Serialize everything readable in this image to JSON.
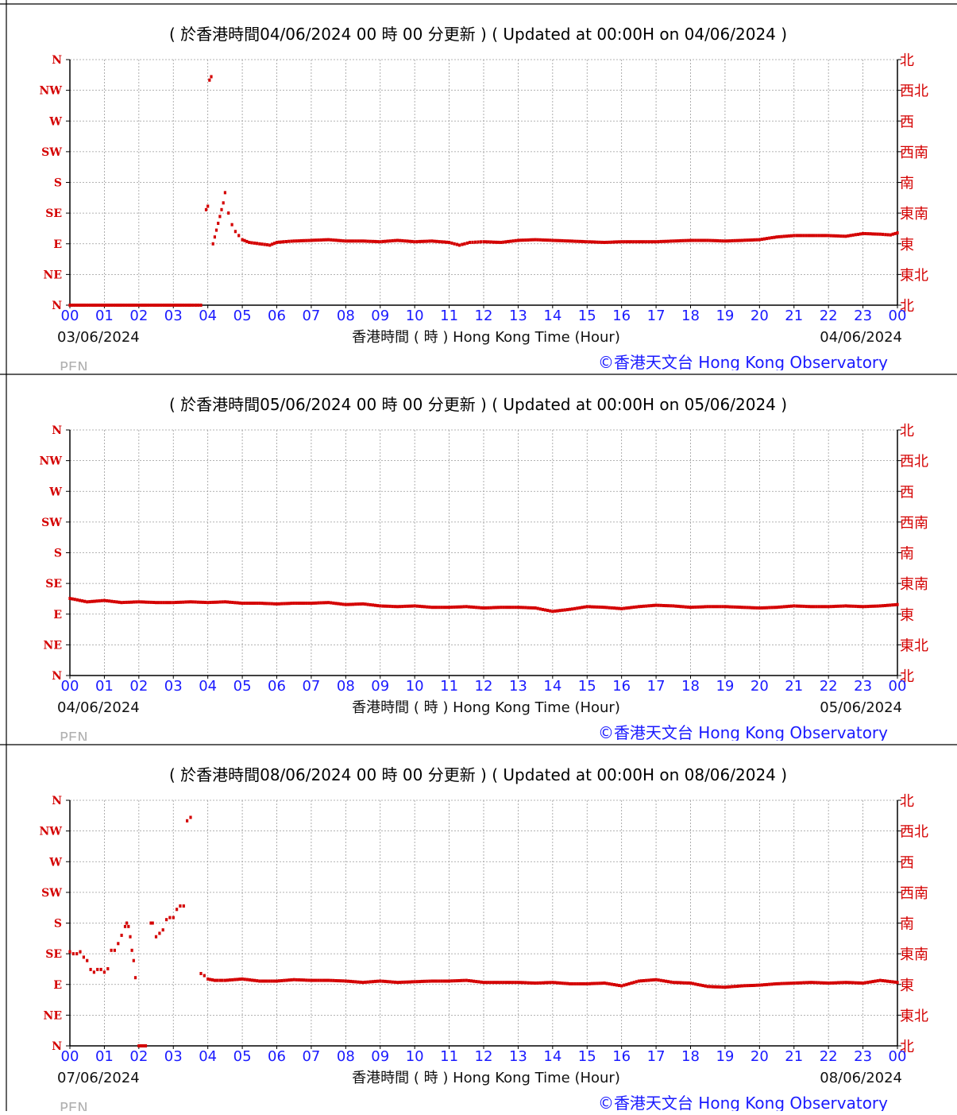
{
  "colors": {
    "series": "#d40000",
    "ticks_x": "#1a1aff",
    "ticks_y": "#d40000",
    "grid": "#9a9a9a",
    "station": "#b0b0b0",
    "credit": "#1a1aff"
  },
  "chart_data": [
    {
      "type": "scatter",
      "title": "( 於香港時間04/06/2024 00 時 00 分更新 ) ( Updated at 00:00H on 04/06/2024 )",
      "xlabel": "香港時間 ( 時 ) Hong Kong Time (Hour)",
      "start_date": "03/06/2024",
      "end_date": "04/06/2024",
      "station": "PEN",
      "credit": "©香港天文台 Hong Kong Observatory",
      "xlim": [
        0,
        24
      ],
      "ylim": [
        0,
        360
      ],
      "x_ticks": [
        "00",
        "01",
        "02",
        "03",
        "04",
        "05",
        "06",
        "07",
        "08",
        "09",
        "10",
        "11",
        "12",
        "13",
        "14",
        "15",
        "16",
        "17",
        "18",
        "19",
        "20",
        "21",
        "22",
        "23",
        "00"
      ],
      "y_ticks_left": [
        "N",
        "NE",
        "E",
        "SE",
        "S",
        "SW",
        "W",
        "NW",
        "N"
      ],
      "y_ticks_right": [
        "北",
        "東北",
        "東",
        "東南",
        "南",
        "西南",
        "西",
        "西北",
        "北"
      ],
      "grid": true,
      "series": [
        {
          "x": [
            0,
            0.5,
            1,
            1.5,
            2,
            2.5,
            3,
            3.5,
            3.8
          ],
          "y": [
            0,
            0,
            0,
            0,
            0,
            0,
            0,
            0,
            0
          ]
        },
        {
          "x": [
            3.95,
            4.0,
            4.05,
            4.1,
            4.15,
            4.2,
            4.25,
            4.3,
            4.35,
            4.4,
            4.45,
            4.5,
            4.6,
            4.7,
            4.8,
            4.9,
            5.0,
            5.2,
            5.5,
            5.8,
            6.0,
            6.2,
            6.5,
            7.0,
            7.5,
            8.0,
            8.5,
            9.0,
            9.5,
            10.0,
            10.5,
            11.0,
            11.3,
            11.6,
            12.0,
            12.5,
            13.0,
            13.5,
            14.0,
            14.5,
            15.0,
            15.5,
            16.0,
            16.5,
            17.0,
            17.5,
            18.0,
            18.5,
            19.0,
            19.5,
            20.0,
            20.5,
            21.0,
            21.5,
            22.0,
            22.5,
            23.0,
            23.5,
            23.8,
            24.0
          ],
          "y": [
            140,
            145,
            330,
            335,
            90,
            100,
            110,
            120,
            130,
            140,
            150,
            165,
            135,
            118,
            108,
            102,
            96,
            92,
            90,
            88,
            92,
            93,
            94,
            95,
            96,
            94,
            94,
            93,
            95,
            93,
            94,
            92,
            88,
            92,
            93,
            92,
            95,
            96,
            95,
            94,
            93,
            92,
            93,
            93,
            93,
            94,
            95,
            95,
            94,
            95,
            96,
            100,
            102,
            102,
            102,
            101,
            105,
            104,
            103,
            106
          ]
        }
      ]
    },
    {
      "type": "scatter",
      "title": "( 於香港時間05/06/2024 00 時 00 分更新 ) ( Updated at 00:00H on 05/06/2024 )",
      "xlabel": "香港時間 ( 時 ) Hong Kong Time (Hour)",
      "start_date": "04/06/2024",
      "end_date": "05/06/2024",
      "station": "PEN",
      "credit": "©香港天文台 Hong Kong Observatory",
      "xlim": [
        0,
        24
      ],
      "ylim": [
        0,
        360
      ],
      "x_ticks": [
        "00",
        "01",
        "02",
        "03",
        "04",
        "05",
        "06",
        "07",
        "08",
        "09",
        "10",
        "11",
        "12",
        "13",
        "14",
        "15",
        "16",
        "17",
        "18",
        "19",
        "20",
        "21",
        "22",
        "23",
        "00"
      ],
      "y_ticks_left": [
        "N",
        "NE",
        "E",
        "SE",
        "S",
        "SW",
        "W",
        "NW",
        "N"
      ],
      "y_ticks_right": [
        "北",
        "東北",
        "東",
        "東南",
        "南",
        "西南",
        "西",
        "西北",
        "北"
      ],
      "grid": true,
      "series": [
        {
          "x": [
            0,
            0.5,
            1,
            1.5,
            2,
            2.5,
            3,
            3.5,
            4,
            4.5,
            5,
            5.5,
            6,
            6.5,
            7,
            7.5,
            8,
            8.5,
            9,
            9.5,
            10,
            10.5,
            11,
            11.5,
            12,
            12.5,
            13,
            13.5,
            14,
            14.5,
            15,
            15.5,
            16,
            16.5,
            17,
            17.5,
            18,
            18.5,
            19,
            19.5,
            20,
            20.5,
            21,
            21.5,
            22,
            22.5,
            23,
            23.5,
            24
          ],
          "y": [
            113,
            108,
            110,
            107,
            108,
            107,
            107,
            108,
            107,
            108,
            106,
            106,
            105,
            106,
            106,
            107,
            104,
            105,
            102,
            101,
            102,
            100,
            100,
            101,
            99,
            100,
            100,
            99,
            94,
            97,
            101,
            100,
            98,
            101,
            103,
            102,
            100,
            101,
            101,
            100,
            99,
            100,
            102,
            101,
            101,
            102,
            101,
            102,
            104
          ]
        }
      ]
    },
    {
      "type": "scatter",
      "title": "( 於香港時間08/06/2024 00 時 00 分更新 ) ( Updated at 00:00H on 08/06/2024 )",
      "xlabel": "香港時間 ( 時 ) Hong Kong Time (Hour)",
      "start_date": "07/06/2024",
      "end_date": "08/06/2024",
      "station": "PEN",
      "credit": "©香港天文台 Hong Kong Observatory",
      "xlim": [
        0,
        24
      ],
      "ylim": [
        0,
        360
      ],
      "x_ticks": [
        "00",
        "01",
        "02",
        "03",
        "04",
        "05",
        "06",
        "07",
        "08",
        "09",
        "10",
        "11",
        "12",
        "13",
        "14",
        "15",
        "16",
        "17",
        "18",
        "19",
        "20",
        "21",
        "22",
        "23",
        "00"
      ],
      "y_ticks_left": [
        "N",
        "NE",
        "E",
        "SE",
        "S",
        "SW",
        "W",
        "NW",
        "N"
      ],
      "y_ticks_right": [
        "北",
        "東北",
        "東",
        "東南",
        "南",
        "西南",
        "西",
        "西北",
        "北"
      ],
      "grid": true,
      "series": [
        {
          "x": [
            0,
            0.1,
            0.2,
            0.3,
            0.4,
            0.5,
            0.6,
            0.7,
            0.8,
            0.9,
            1.0,
            1.1,
            1.2,
            1.3,
            1.4,
            1.5,
            1.6,
            1.65,
            1.7,
            1.75,
            1.8,
            1.85,
            1.9
          ],
          "y": [
            138,
            135,
            135,
            138,
            130,
            125,
            112,
            108,
            112,
            112,
            108,
            113,
            140,
            140,
            150,
            162,
            175,
            180,
            175,
            160,
            140,
            125,
            100
          ]
        },
        {
          "x": [
            2.0,
            2.05,
            2.1,
            2.15,
            2.2
          ],
          "y": [
            0,
            0,
            0,
            0,
            0
          ]
        },
        {
          "x": [
            2.35,
            2.4,
            2.5,
            2.6,
            2.7,
            2.8,
            2.9,
            3.0,
            3.1,
            3.2,
            3.3,
            3.4,
            3.5
          ],
          "y": [
            180,
            180,
            160,
            165,
            170,
            185,
            188,
            188,
            200,
            205,
            205,
            330,
            335
          ]
        },
        {
          "x": [
            3.8,
            3.9,
            4.0,
            4.2,
            4.5,
            5.0,
            5.5,
            6.0,
            6.5,
            7.0,
            7.5,
            8.0,
            8.5,
            9.0,
            9.5,
            10.0,
            10.5,
            11.0,
            11.5,
            12.0,
            12.5,
            13.0,
            13.5,
            14.0,
            14.5,
            15.0,
            15.5,
            16.0,
            16.5,
            17.0,
            17.5,
            18.0,
            18.5,
            19.0,
            19.5,
            20.0,
            20.5,
            21.0,
            21.5,
            22.0,
            22.5,
            23.0,
            23.5,
            24.0
          ],
          "y": [
            106,
            103,
            98,
            96,
            96,
            98,
            95,
            95,
            97,
            96,
            96,
            95,
            93,
            95,
            93,
            94,
            95,
            95,
            96,
            93,
            93,
            93,
            92,
            93,
            91,
            91,
            92,
            88,
            95,
            97,
            93,
            92,
            87,
            86,
            88,
            89,
            91,
            92,
            93,
            92,
            93,
            92,
            96,
            93
          ]
        }
      ]
    }
  ]
}
